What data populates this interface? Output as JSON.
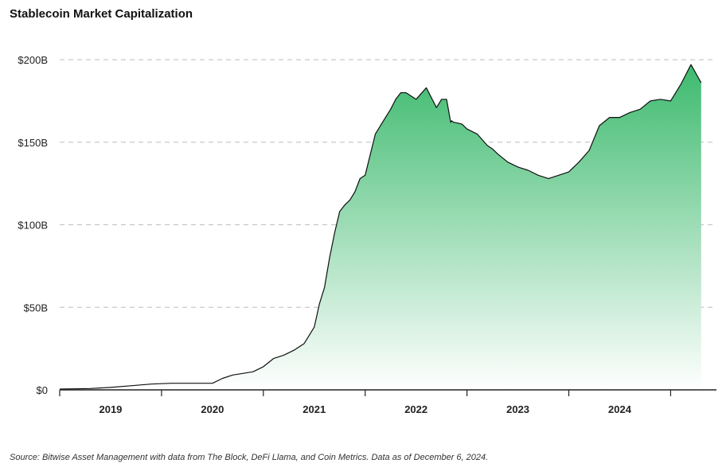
{
  "title": "Stablecoin Market Capitalization",
  "source": "Source: Bitwise Asset Management with data from The Block, DeFi Llama, and Coin Metrics. Data as of December 6, 2024.",
  "colors": {
    "fill_top": "#3dba6e",
    "fill_bottom": "#ffffff",
    "line": "#111111",
    "grid": "#bdbdbd"
  },
  "chart_data": {
    "type": "area",
    "title": "Stablecoin Market Capitalization",
    "xlabel": "",
    "ylabel": "",
    "ylim": [
      0,
      200
    ],
    "xlim": [
      2018.5,
      2024.95
    ],
    "y_ticks": [
      0,
      50,
      100,
      150,
      200
    ],
    "y_tick_labels": [
      "$0",
      "$50B",
      "$100B",
      "$150B",
      "$200B"
    ],
    "x_ticks": [
      2018.5,
      2019.5,
      2020.5,
      2021.5,
      2022.5,
      2023.5,
      2024.5
    ],
    "x_tick_labels": [
      "2019",
      "2020",
      "2021",
      "2022",
      "2023",
      "2024"
    ],
    "grid": "horizontal-dashed",
    "legend": "none",
    "series": [
      {
        "x": [
          2018.5,
          2018.8,
          2019.0,
          2019.2,
          2019.4,
          2019.6,
          2019.8,
          2020.0,
          2020.1,
          2020.2,
          2020.3,
          2020.4,
          2020.5,
          2020.6,
          2020.7,
          2020.8,
          2020.9,
          2021.0,
          2021.05,
          2021.1,
          2021.15,
          2021.2,
          2021.25,
          2021.3,
          2021.35,
          2021.4,
          2021.45,
          2021.5,
          2021.6,
          2021.7,
          2021.75,
          2021.8,
          2021.85,
          2021.9,
          2022.0,
          2022.1,
          2022.2,
          2022.25,
          2022.3,
          2022.34,
          2022.35,
          2022.37,
          2022.38,
          2022.45,
          2022.5,
          2022.6,
          2022.7,
          2022.75,
          2022.8,
          2022.9,
          2023.0,
          2023.1,
          2023.2,
          2023.3,
          2023.4,
          2023.5,
          2023.6,
          2023.7,
          2023.8,
          2023.9,
          2024.0,
          2024.1,
          2024.2,
          2024.3,
          2024.4,
          2024.5,
          2024.6,
          2024.7,
          2024.8,
          2024.88,
          2024.92,
          2024.94,
          2024.95
        ],
        "values": [
          0.5,
          0.8,
          1.5,
          2.5,
          3.5,
          4,
          4,
          4,
          7,
          9,
          10,
          11,
          14,
          19,
          21,
          24,
          28,
          38,
          52,
          62,
          80,
          95,
          108,
          112,
          115,
          120,
          128,
          130,
          155,
          165,
          170,
          176,
          180,
          180,
          176,
          183,
          171,
          176,
          176,
          162,
          163,
          162,
          162,
          161,
          158,
          155,
          148,
          146,
          143,
          138,
          135,
          133,
          130,
          128,
          130,
          132,
          138,
          145,
          160,
          165,
          165,
          168,
          170,
          175,
          176,
          175,
          185,
          197,
          186,
          0,
          0,
          0,
          0
        ]
      }
    ]
  }
}
